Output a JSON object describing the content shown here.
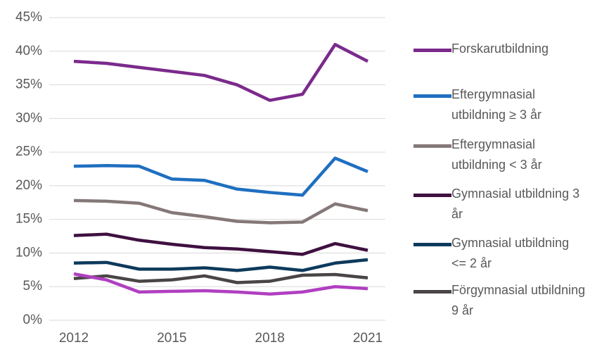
{
  "chart_data": {
    "type": "line",
    "x": [
      2012,
      2013,
      2014,
      2015,
      2016,
      2017,
      2018,
      2019,
      2020,
      2021
    ],
    "xlim": [
      2012,
      2021
    ],
    "xticks": [
      2012,
      2015,
      2018,
      2021
    ],
    "ylim": [
      0,
      45
    ],
    "yticks": [
      {
        "value": 0,
        "label": "0%"
      },
      {
        "value": 5,
        "label": "5%"
      },
      {
        "value": 10,
        "label": "10%"
      },
      {
        "value": 15,
        "label": "15%"
      },
      {
        "value": 20,
        "label": "20%"
      },
      {
        "value": 25,
        "label": "25%"
      },
      {
        "value": 30,
        "label": "30%"
      },
      {
        "value": 35,
        "label": "35%"
      },
      {
        "value": 40,
        "label": "40%"
      },
      {
        "value": 45,
        "label": "45%"
      }
    ],
    "grid": true,
    "legend": "right",
    "series": [
      {
        "name": "Forskarutbildning",
        "color": "#7b2a8c",
        "values": [
          38.5,
          38.2,
          37.6,
          37.0,
          36.4,
          35.0,
          32.7,
          33.6,
          41.0,
          38.5
        ]
      },
      {
        "name": "Eftergymnasial utbildning ≥ 3 år",
        "color": "#1f6fc0",
        "values": [
          22.9,
          23.0,
          22.9,
          21.0,
          20.8,
          19.5,
          19.0,
          18.6,
          24.1,
          22.1
        ]
      },
      {
        "name": "Eftergymnasial utbildning < 3 år",
        "color": "#857878",
        "values": [
          17.8,
          17.7,
          17.4,
          16.0,
          15.4,
          14.7,
          14.5,
          14.6,
          17.3,
          16.3
        ]
      },
      {
        "name": "Gymnasial utbildning 3 år",
        "color": "#3f1040",
        "values": [
          12.6,
          12.8,
          11.9,
          11.3,
          10.8,
          10.6,
          10.2,
          9.8,
          11.4,
          10.4
        ]
      },
      {
        "name": "Gymnasial utbildning <= 2 år",
        "color": "#0d3a5c",
        "values": [
          8.5,
          8.6,
          7.6,
          7.6,
          7.8,
          7.4,
          7.9,
          7.4,
          8.5,
          9.0
        ]
      },
      {
        "name": "Förgymnasial utbildning 9 år",
        "color": "#4a4545",
        "values": [
          6.2,
          6.6,
          5.8,
          6.0,
          6.6,
          5.6,
          5.8,
          6.7,
          6.8,
          6.3
        ]
      },
      {
        "color": "#b03fc0",
        "values": [
          6.9,
          6.0,
          4.2,
          4.3,
          4.4,
          4.2,
          3.9,
          4.2,
          5.0,
          4.7
        ]
      }
    ]
  }
}
